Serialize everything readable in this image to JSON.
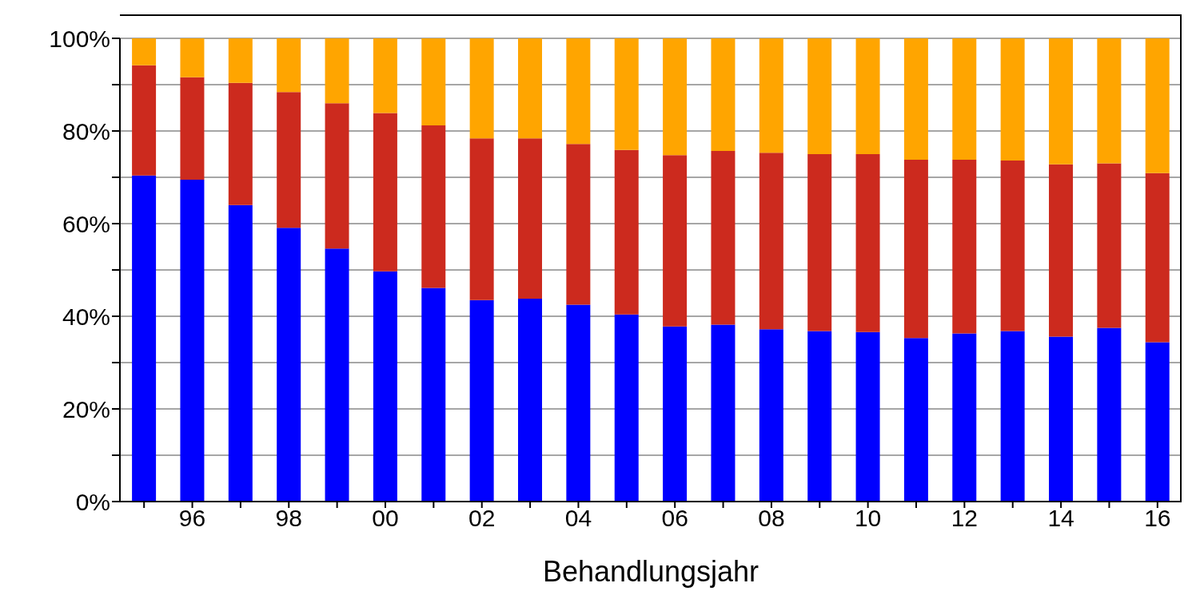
{
  "chart_data": {
    "type": "bar",
    "stacked": true,
    "xlabel": "Behandlungsjahr",
    "categories": [
      null,
      "96",
      null,
      "98",
      null,
      "00",
      null,
      "02",
      null,
      "04",
      null,
      "06",
      null,
      "08",
      null,
      "10",
      null,
      "12",
      null,
      "14",
      null,
      "16"
    ],
    "series": [
      {
        "color": "#0000ff",
        "values": [
          70.4,
          69.5,
          64.0,
          59.1,
          54.6,
          49.7,
          46.1,
          43.5,
          43.8,
          42.5,
          40.4,
          37.8,
          38.2,
          37.2,
          36.8,
          36.6,
          35.3,
          36.3,
          36.8,
          35.6,
          37.5,
          34.4
        ]
      },
      {
        "color": "#cc2a1e",
        "values": [
          23.8,
          22.1,
          26.4,
          29.3,
          31.4,
          34.2,
          35.1,
          34.9,
          34.6,
          34.7,
          35.5,
          37.0,
          37.5,
          38.1,
          38.2,
          38.4,
          38.5,
          37.5,
          36.8,
          37.2,
          35.5,
          36.5
        ]
      },
      {
        "color": "#ffa500",
        "values": [
          5.8,
          8.4,
          9.6,
          11.6,
          14.0,
          16.1,
          18.8,
          21.6,
          21.6,
          22.8,
          24.1,
          25.2,
          24.3,
          24.7,
          25.0,
          25.0,
          26.2,
          26.2,
          26.4,
          27.2,
          27.0,
          29.1
        ]
      }
    ],
    "ylim": [
      0,
      100
    ],
    "yticks": [
      {
        "value": 0,
        "label": "0%"
      },
      {
        "value": 10,
        "label": null
      },
      {
        "value": 20,
        "label": "20%"
      },
      {
        "value": 30,
        "label": null
      },
      {
        "value": 40,
        "label": "40%"
      },
      {
        "value": 50,
        "label": null
      },
      {
        "value": 60,
        "label": "60%"
      },
      {
        "value": 70,
        "label": null
      },
      {
        "value": 80,
        "label": "80%"
      },
      {
        "value": 90,
        "label": null
      },
      {
        "value": 100,
        "label": "100%"
      }
    ],
    "grid": "y",
    "legend": false
  }
}
